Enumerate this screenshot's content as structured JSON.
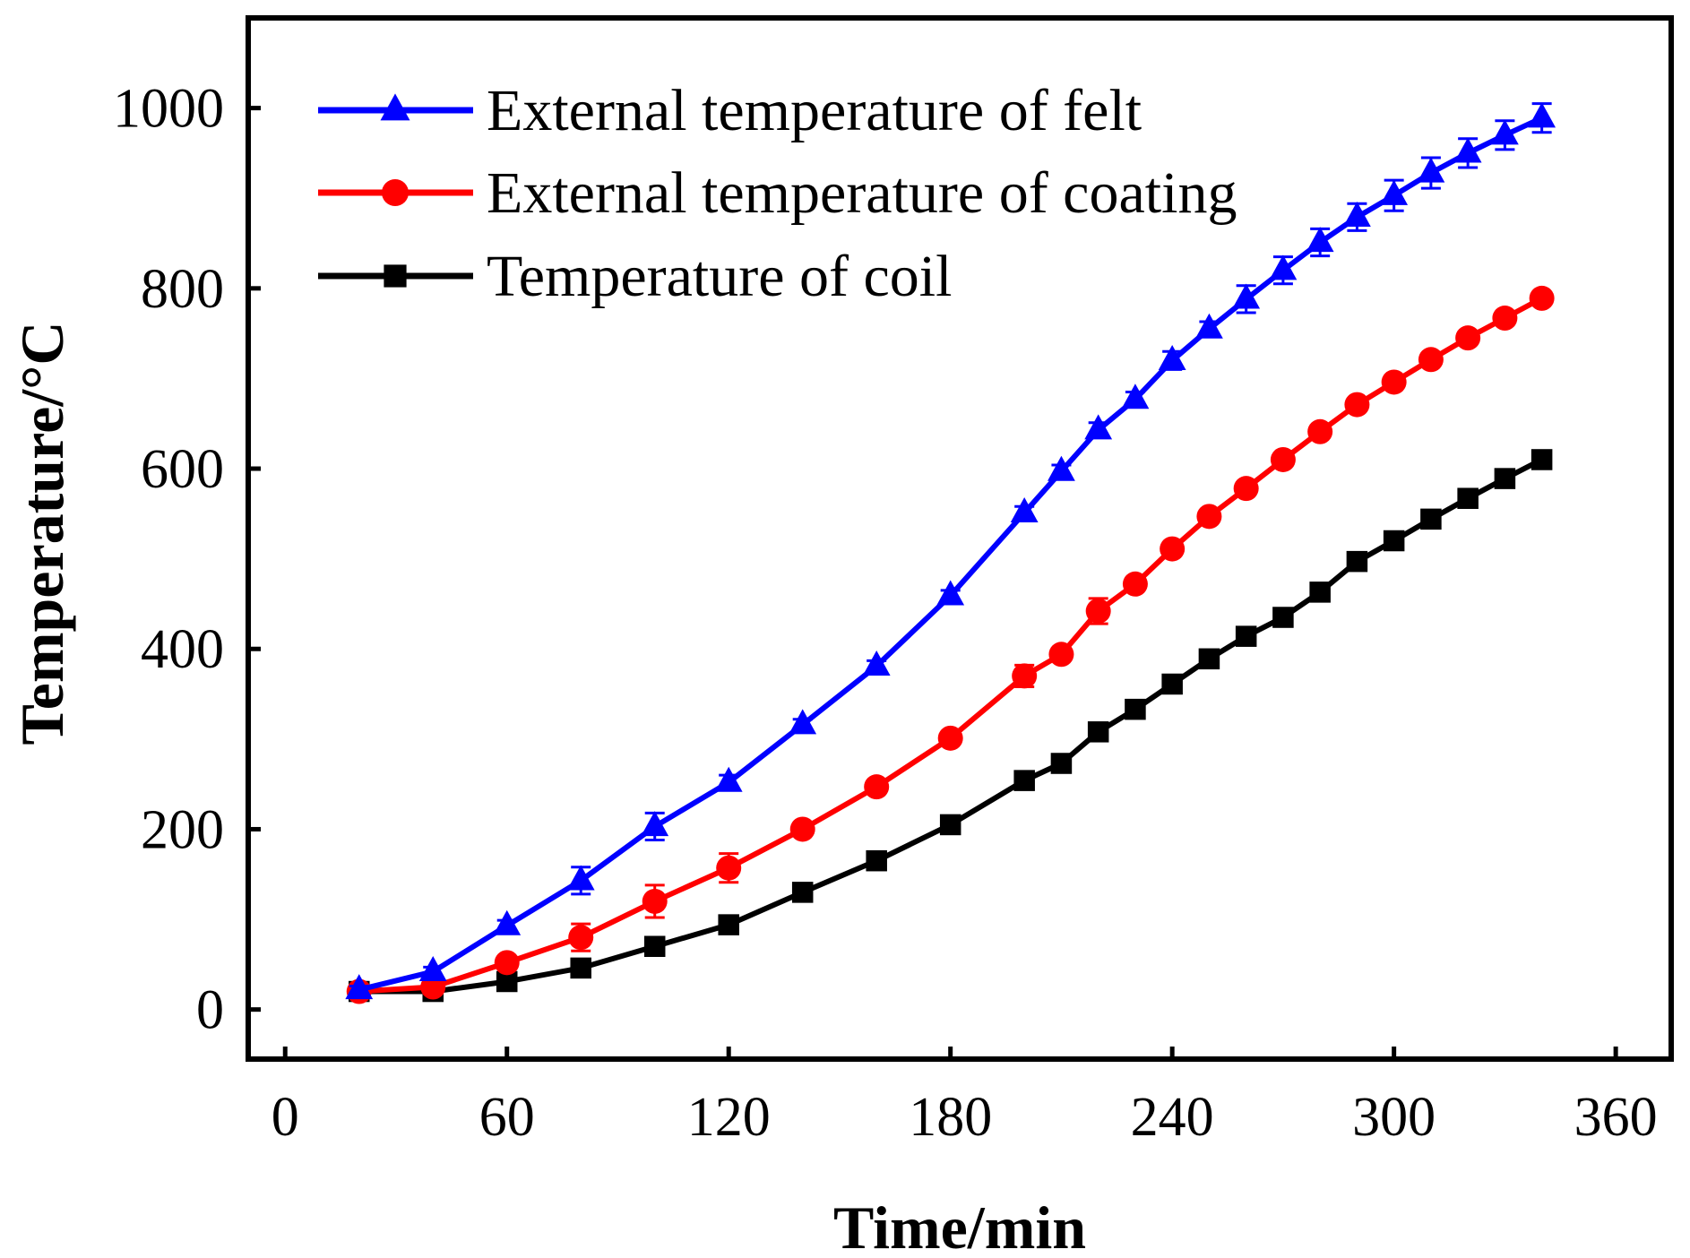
{
  "chart_data": {
    "type": "line",
    "title": "",
    "xlabel": "Time/min",
    "ylabel": "Temperature/°C",
    "xlim": [
      -10,
      375
    ],
    "ylim": [
      -55,
      1100
    ],
    "xticks": [
      0,
      60,
      120,
      180,
      240,
      300,
      360
    ],
    "yticks": [
      0,
      200,
      400,
      600,
      800,
      1000
    ],
    "grid": false,
    "legend_position": "top-left",
    "x": [
      20,
      40,
      60,
      80,
      100,
      120,
      140,
      160,
      180,
      200,
      210,
      220,
      230,
      240,
      250,
      260,
      270,
      280,
      290,
      300,
      310,
      320,
      330,
      340
    ],
    "series": [
      {
        "name": "External temperature of felt",
        "color": "#0000ff",
        "marker": "triangle",
        "values": [
          22,
          42,
          93,
          143,
          203,
          252,
          316,
          381,
          459,
          551,
          597,
          643,
          677,
          720,
          755,
          788,
          820,
          851,
          879,
          903,
          928,
          950,
          970,
          989
        ],
        "errors": [
          4,
          5,
          6,
          15,
          15,
          8,
          6,
          6,
          6,
          7,
          7,
          8,
          8,
          10,
          8,
          15,
          15,
          15,
          15,
          17,
          17,
          16,
          16,
          16
        ]
      },
      {
        "name": "External temperature of coating",
        "color": "#ff0000",
        "marker": "circle",
        "values": [
          20,
          25,
          52,
          80,
          120,
          157,
          200,
          247,
          301,
          370,
          394,
          442,
          472,
          511,
          547,
          578,
          610,
          641,
          671,
          696,
          721,
          745,
          767,
          789
        ],
        "errors": [
          4,
          4,
          6,
          15,
          18,
          16,
          5,
          5,
          5,
          12,
          6,
          14,
          6,
          6,
          5,
          5,
          5,
          5,
          5,
          5,
          5,
          5,
          5,
          5
        ]
      },
      {
        "name": "Temperature of coil",
        "color": "#000000",
        "marker": "square",
        "values": [
          20,
          20,
          31,
          46,
          70,
          94,
          130,
          165,
          205,
          254,
          273,
          308,
          333,
          361,
          389,
          414,
          435,
          463,
          497,
          520,
          544,
          567,
          589,
          610
        ],
        "errors": [
          4,
          4,
          4,
          4,
          4,
          4,
          4,
          4,
          4,
          4,
          4,
          4,
          4,
          4,
          4,
          4,
          4,
          4,
          4,
          4,
          4,
          4,
          4,
          4
        ]
      }
    ]
  }
}
